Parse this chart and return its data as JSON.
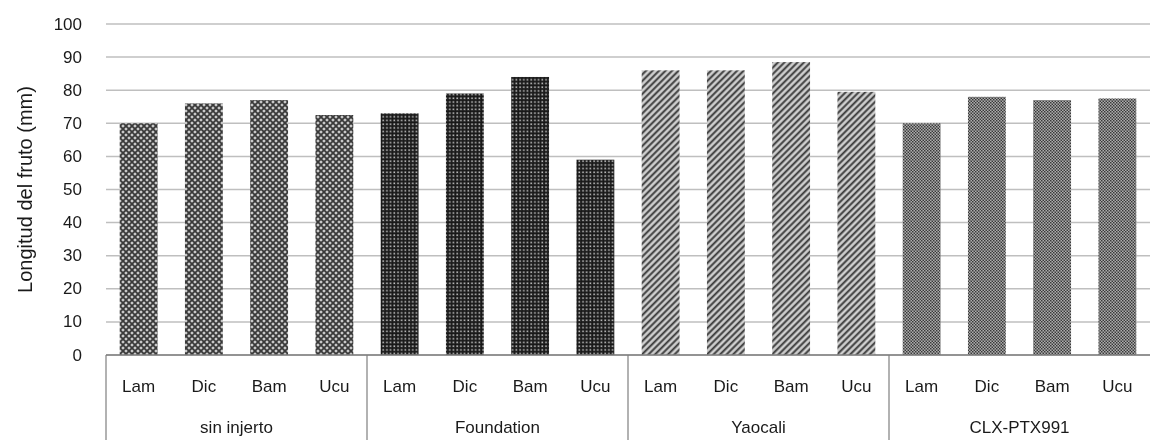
{
  "chart_data": {
    "type": "bar",
    "ylabel": "Longitud del fruto (mm)",
    "categories": [
      "sin injerto",
      "Foundation",
      "Yaocali",
      "CLX-PTX991"
    ],
    "series": [
      {
        "name": "Lam",
        "colors": [
          "#7f7f7f",
          "#2e2e2e",
          "#9c9c9c",
          "#676767"
        ],
        "values": [
          70,
          73,
          86,
          70
        ]
      },
      {
        "name": "Dic",
        "colors": [
          "#7f7f7f",
          "#2e2e2e",
          "#9c9c9c",
          "#676767"
        ],
        "values": [
          76,
          79,
          86,
          78
        ]
      },
      {
        "name": "Bam",
        "colors": [
          "#7f7f7f",
          "#2e2e2e",
          "#9c9c9c",
          "#676767"
        ],
        "values": [
          77,
          84,
          88.5,
          77
        ]
      },
      {
        "name": "Ucu",
        "colors": [
          "#7f7f7f",
          "#2e2e2e",
          "#9c9c9c",
          "#676767"
        ],
        "values": [
          72.5,
          59,
          79.5,
          77.5
        ]
      }
    ],
    "ylim": [
      0,
      100
    ],
    "yticks": [
      0,
      10,
      20,
      30,
      40,
      50,
      60,
      70,
      80,
      90,
      100
    ],
    "grid": "y"
  }
}
